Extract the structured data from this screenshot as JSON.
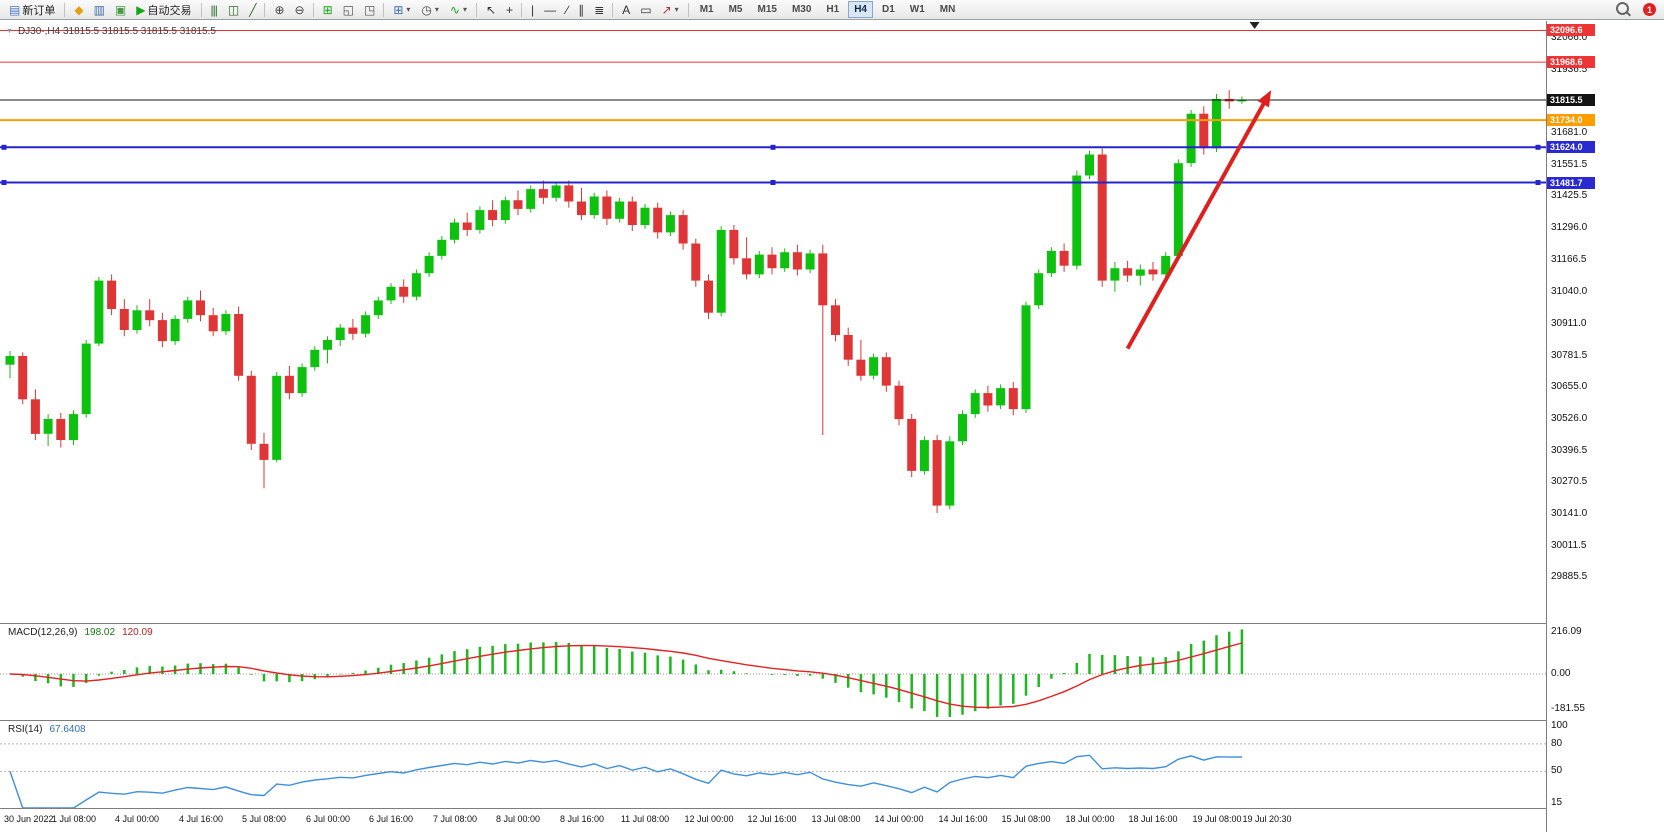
{
  "toolbar": {
    "notification_count": "1",
    "timeframes": [
      "M1",
      "M5",
      "M15",
      "M30",
      "H1",
      "H4",
      "D1",
      "W1",
      "MN"
    ],
    "active_timeframe": "H4",
    "groups": [
      {
        "items": [
          {
            "name": "new-order-button",
            "icon": "new-order-icon",
            "glyph": "▤",
            "color": "#4a76c0",
            "label": "新订单"
          }
        ]
      },
      {
        "items": [
          {
            "name": "metaeditor-button",
            "icon": "metaeditor-icon",
            "glyph": "◆",
            "color": "#e0a010"
          },
          {
            "name": "market-watch-button",
            "icon": "market-watch-icon",
            "glyph": "▥",
            "color": "#3a6ea5"
          },
          {
            "name": "navigator-button",
            "icon": "navigator-icon",
            "glyph": "▣",
            "color": "#4a9a4a"
          },
          {
            "name": "autotrading-button",
            "icon": "autotrading-play-icon",
            "glyph": "▶",
            "color": "#16a616",
            "label": "自动交易"
          }
        ]
      },
      {
        "items": [
          {
            "name": "bar-chart-button",
            "icon": "bar-chart-icon",
            "glyph": "|||",
            "color": "#2f6a2f"
          },
          {
            "name": "candlestick-chart-button",
            "icon": "candlestick-icon",
            "glyph": "◫",
            "color": "#2f6a2f"
          },
          {
            "name": "line-chart-button",
            "icon": "line-chart-icon",
            "glyph": "╱",
            "color": "#2f6a2f"
          }
        ]
      },
      {
        "items": [
          {
            "name": "zoom-in-button",
            "icon": "zoom-in-icon",
            "glyph": "⊕",
            "color": "#444444"
          },
          {
            "name": "zoom-out-button",
            "icon": "zoom-out-icon",
            "glyph": "⊖",
            "color": "#444444"
          }
        ]
      },
      {
        "items": [
          {
            "name": "tile-windows-button",
            "icon": "tile-windows-icon",
            "glyph": "⊞",
            "color": "#16a616"
          },
          {
            "name": "cascade-windows-button",
            "icon": "cascade-windows-icon",
            "glyph": "◱",
            "color": "#555555"
          },
          {
            "name": "tile-horizontal-button",
            "icon": "tile-horizontal-icon",
            "glyph": "◳",
            "color": "#555555"
          }
        ]
      },
      {
        "items": [
          {
            "name": "new-chart-button",
            "icon": "new-chart-icon",
            "glyph": "⊞",
            "color": "#3a6ea5",
            "caret": true
          },
          {
            "name": "profiles-button",
            "icon": "clock-icon",
            "glyph": "◷",
            "color": "#444444",
            "caret": true
          },
          {
            "name": "indicators-button",
            "icon": "indicators-icon",
            "glyph": "∿",
            "color": "#16a616",
            "caret": true
          }
        ]
      },
      {
        "items": [
          {
            "name": "cursor-button",
            "icon": "cursor-icon",
            "glyph": "↖",
            "color": "#333333"
          },
          {
            "name": "crosshair-button",
            "icon": "crosshair-icon",
            "glyph": "+",
            "color": "#333333"
          }
        ]
      },
      {
        "items": [
          {
            "name": "vertical-line-button",
            "icon": "vertical-line-icon",
            "glyph": "|",
            "color": "#333333"
          },
          {
            "name": "horizontal-line-button",
            "icon": "horizontal-line-icon",
            "glyph": "—",
            "color": "#333333"
          },
          {
            "name": "trendline-button",
            "icon": "trendline-icon",
            "glyph": "∕",
            "color": "#333333"
          },
          {
            "name": "channel-button",
            "icon": "channel-icon",
            "glyph": "∥",
            "color": "#333333"
          },
          {
            "name": "fibonacci-button",
            "icon": "fibonacci-icon",
            "glyph": "≣",
            "color": "#333333"
          }
        ]
      },
      {
        "items": [
          {
            "name": "text-button",
            "icon": "text-icon",
            "glyph": "A",
            "color": "#333333"
          },
          {
            "name": "text-label-button",
            "icon": "text-label-icon",
            "glyph": "▭",
            "color": "#333333"
          },
          {
            "name": "arrows-button",
            "icon": "arrow-tool-icon",
            "glyph": "↗",
            "color": "#b03030",
            "caret": true
          }
        ]
      }
    ]
  },
  "chart_data": {
    "type": "candlestick",
    "symbol": "DJ30-",
    "timeframe": "H4",
    "title": "DJ30-,H4  31815.5 31815.5 31815.5 31815.5",
    "colors": {
      "up": "#0fc10f",
      "down": "#de3636",
      "background": "#ffffff"
    },
    "price_axis": {
      "max": 32135,
      "min": 29700,
      "ticks": [
        {
          "t": "32066.0",
          "v": 32066.0
        },
        {
          "t": "31936.5",
          "v": 31936.5
        },
        {
          "t": "31681.0",
          "v": 31681.0
        },
        {
          "t": "31551.5",
          "v": 31551.5
        },
        {
          "t": "31425.5",
          "v": 31425.5
        },
        {
          "t": "31296.0",
          "v": 31296.0
        },
        {
          "t": "31166.5",
          "v": 31166.5
        },
        {
          "t": "31040.0",
          "v": 31040.0
        },
        {
          "t": "30911.0",
          "v": 30911.0
        },
        {
          "t": "30781.5",
          "v": 30781.5
        },
        {
          "t": "30655.0",
          "v": 30655.0
        },
        {
          "t": "30526.0",
          "v": 30526.0
        },
        {
          "t": "30396.5",
          "v": 30396.5
        },
        {
          "t": "30270.5",
          "v": 30270.5
        },
        {
          "t": "30141.0",
          "v": 30141.0
        },
        {
          "t": "30011.5",
          "v": 30011.5
        },
        {
          "t": "29885.5",
          "v": 29885.5
        }
      ]
    },
    "price_lines": [
      {
        "label": "32096.6",
        "price": 32096.6,
        "color": "#ef3030",
        "badge": "#ee3535",
        "width": 1,
        "handles": false
      },
      {
        "label": "31968.6",
        "price": 31968.6,
        "color": "#ef3030",
        "badge": "#ee3535",
        "width": 1,
        "handles": false
      },
      {
        "label": "31815.5",
        "price": 31815.5,
        "color": "#141414",
        "badge": "#141414",
        "width": 1,
        "handles": false
      },
      {
        "label": "31734.0",
        "price": 31734.0,
        "color": "#ff9c00",
        "badge": "#ff9c00",
        "width": 2,
        "handles": false
      },
      {
        "label": "31624.0",
        "price": 31624.0,
        "color": "#2424cf",
        "badge": "#2a2ad0",
        "width": 2,
        "handles": true
      },
      {
        "label": "31481.7",
        "price": 31481.7,
        "color": "#2424cf",
        "badge": "#2a2ad0",
        "width": 2,
        "handles": true
      }
    ],
    "ohlc": [
      [
        30745,
        30800,
        30690,
        30780
      ],
      [
        30780,
        30795,
        30585,
        30605
      ],
      [
        30605,
        30645,
        30440,
        30465
      ],
      [
        30465,
        30545,
        30415,
        30525
      ],
      [
        30525,
        30550,
        30410,
        30440
      ],
      [
        30440,
        30560,
        30420,
        30545
      ],
      [
        30545,
        30845,
        30530,
        30830
      ],
      [
        30830,
        31100,
        30820,
        31085
      ],
      [
        31085,
        31110,
        30945,
        30970
      ],
      [
        30970,
        31010,
        30860,
        30885
      ],
      [
        30885,
        30985,
        30870,
        30965
      ],
      [
        30965,
        31010,
        30900,
        30925
      ],
      [
        30925,
        30955,
        30815,
        30840
      ],
      [
        30840,
        30945,
        30825,
        30930
      ],
      [
        30930,
        31020,
        30915,
        31005
      ],
      [
        31005,
        31045,
        30920,
        30945
      ],
      [
        30945,
        30975,
        30860,
        30880
      ],
      [
        30880,
        30965,
        30865,
        30950
      ],
      [
        30950,
        30980,
        30680,
        30700
      ],
      [
        30700,
        30720,
        30400,
        30425
      ],
      [
        30425,
        30470,
        30245,
        30360
      ],
      [
        30360,
        30715,
        30350,
        30700
      ],
      [
        30700,
        30740,
        30605,
        30630
      ],
      [
        30630,
        30750,
        30615,
        30735
      ],
      [
        30735,
        30820,
        30720,
        30805
      ],
      [
        30805,
        30860,
        30750,
        30845
      ],
      [
        30845,
        30910,
        30820,
        30895
      ],
      [
        30895,
        30930,
        30845,
        30870
      ],
      [
        30870,
        30960,
        30855,
        30945
      ],
      [
        30945,
        31020,
        30930,
        31005
      ],
      [
        31005,
        31075,
        30990,
        31060
      ],
      [
        31060,
        31090,
        30995,
        31020
      ],
      [
        31020,
        31130,
        31005,
        31115
      ],
      [
        31115,
        31200,
        31100,
        31185
      ],
      [
        31185,
        31265,
        31170,
        31250
      ],
      [
        31250,
        31335,
        31235,
        31320
      ],
      [
        31320,
        31360,
        31265,
        31290
      ],
      [
        31290,
        31385,
        31275,
        31370
      ],
      [
        31370,
        31410,
        31305,
        31330
      ],
      [
        31330,
        31425,
        31315,
        31410
      ],
      [
        31410,
        31450,
        31350,
        31375
      ],
      [
        31375,
        31470,
        31360,
        31455
      ],
      [
        31455,
        31490,
        31395,
        31420
      ],
      [
        31420,
        31485,
        31405,
        31470
      ],
      [
        31470,
        31490,
        31380,
        31405
      ],
      [
        31405,
        31460,
        31330,
        31350
      ],
      [
        31350,
        31440,
        31335,
        31425
      ],
      [
        31425,
        31450,
        31310,
        31335
      ],
      [
        31335,
        31420,
        31320,
        31405
      ],
      [
        31405,
        31425,
        31285,
        31310
      ],
      [
        31310,
        31395,
        31295,
        31380
      ],
      [
        31380,
        31400,
        31255,
        31280
      ],
      [
        31280,
        31365,
        31265,
        31350
      ],
      [
        31350,
        31370,
        31210,
        31235
      ],
      [
        31235,
        31255,
        31060,
        31085
      ],
      [
        31085,
        31110,
        30930,
        30955
      ],
      [
        30955,
        31305,
        30940,
        31290
      ],
      [
        31290,
        31310,
        31150,
        31175
      ],
      [
        31175,
        31260,
        31090,
        31110
      ],
      [
        31110,
        31205,
        31095,
        31190
      ],
      [
        31190,
        31220,
        31110,
        31135
      ],
      [
        31135,
        31215,
        31120,
        31200
      ],
      [
        31200,
        31230,
        31105,
        31130
      ],
      [
        31130,
        31210,
        31115,
        31195
      ],
      [
        31195,
        31230,
        30460,
        30985
      ],
      [
        30985,
        31010,
        30840,
        30865
      ],
      [
        30865,
        30895,
        30740,
        30765
      ],
      [
        30765,
        30845,
        30680,
        30700
      ],
      [
        30700,
        30790,
        30685,
        30775
      ],
      [
        30775,
        30795,
        30635,
        30660
      ],
      [
        30660,
        30680,
        30500,
        30525
      ],
      [
        30525,
        30545,
        30290,
        30315
      ],
      [
        30315,
        30455,
        30300,
        30440
      ],
      [
        30440,
        30460,
        30145,
        30175
      ],
      [
        30175,
        30455,
        30160,
        30435
      ],
      [
        30435,
        30560,
        30420,
        30545
      ],
      [
        30545,
        30645,
        30530,
        30630
      ],
      [
        30630,
        30660,
        30555,
        30580
      ],
      [
        30580,
        30665,
        30565,
        30650
      ],
      [
        30650,
        30675,
        30540,
        30565
      ],
      [
        30565,
        31000,
        30550,
        30985
      ],
      [
        30985,
        31130,
        30970,
        31115
      ],
      [
        31115,
        31220,
        31100,
        31205
      ],
      [
        31205,
        31235,
        31120,
        31145
      ],
      [
        31145,
        31530,
        31130,
        31510
      ],
      [
        31510,
        31610,
        31495,
        31595
      ],
      [
        31595,
        31620,
        31060,
        31085
      ],
      [
        31085,
        31160,
        31040,
        31135
      ],
      [
        31135,
        31165,
        31080,
        31105
      ],
      [
        31105,
        31150,
        31065,
        31130
      ],
      [
        31130,
        31160,
        31085,
        31110
      ],
      [
        31110,
        31200,
        31095,
        31185
      ],
      [
        31185,
        31575,
        31170,
        31560
      ],
      [
        31560,
        31775,
        31545,
        31760
      ],
      [
        31760,
        31790,
        31595,
        31620
      ],
      [
        31620,
        31840,
        31605,
        31820
      ],
      [
        31820,
        31855,
        31780,
        31810
      ],
      [
        31815.5,
        31830,
        31800,
        31815.5
      ]
    ],
    "time_labels": [
      {
        "t": "30 Jun 2022",
        "i": 0
      },
      {
        "t": "1 Jul 08:00",
        "i": 5
      },
      {
        "t": "4 Jul 00:00",
        "i": 10
      },
      {
        "t": "4 Jul 16:00",
        "i": 15
      },
      {
        "t": "5 Jul 08:00",
        "i": 20
      },
      {
        "t": "6 Jul 00:00",
        "i": 25
      },
      {
        "t": "6 Jul 16:00",
        "i": 30
      },
      {
        "t": "7 Jul 08:00",
        "i": 35
      },
      {
        "t": "8 Jul 00:00",
        "i": 40
      },
      {
        "t": "8 Jul 16:00",
        "i": 45
      },
      {
        "t": "11 Jul 08:00",
        "i": 50
      },
      {
        "t": "12 Jul 00:00",
        "i": 55
      },
      {
        "t": "12 Jul 16:00",
        "i": 60
      },
      {
        "t": "13 Jul 08:00",
        "i": 65
      },
      {
        "t": "14 Jul 00:00",
        "i": 70
      },
      {
        "t": "14 Jul 16:00",
        "i": 75
      },
      {
        "t": "15 Jul 08:00",
        "i": 80
      },
      {
        "t": "18 Jul 00:00",
        "i": 85
      },
      {
        "t": "18 Jul 16:00",
        "i": 90
      },
      {
        "t": "19 Jul 08:00",
        "i": 95
      },
      {
        "t": "19 Jul 20:30",
        "i": 99
      }
    ],
    "annotations": {
      "arrow": {
        "from_index": 88,
        "from_price": 30810,
        "to_index": 99.3,
        "to_price": 31855,
        "color": "#e01f1f",
        "width": 4
      },
      "shift_marker_index": 98
    },
    "indicators": {
      "macd": {
        "label": "MACD(12,26,9)",
        "value_main": "198.02",
        "value_signal": "120.09",
        "fast": 12,
        "slow": 26,
        "signal": 9,
        "scale_max": 216.09,
        "hist_color": "#1db81d",
        "signal_color": "#e32222",
        "ticks": [
          {
            "t": "216.09",
            "v": 216.09
          },
          {
            "t": "0.00",
            "v": 0
          },
          {
            "t": "-181.55",
            "v": -181.55
          }
        ]
      },
      "rsi": {
        "label": "RSI(14)",
        "value": "67.6408",
        "period": 14,
        "color": "#3f8fdf",
        "range": {
          "max": 105,
          "min": 10
        },
        "levels": [
          80,
          50
        ],
        "ticks": [
          {
            "t": "100",
            "v": 100
          },
          {
            "t": "80",
            "v": 80
          },
          {
            "t": "50",
            "v": 50
          },
          {
            "t": "15",
            "v": 15
          }
        ]
      }
    }
  }
}
